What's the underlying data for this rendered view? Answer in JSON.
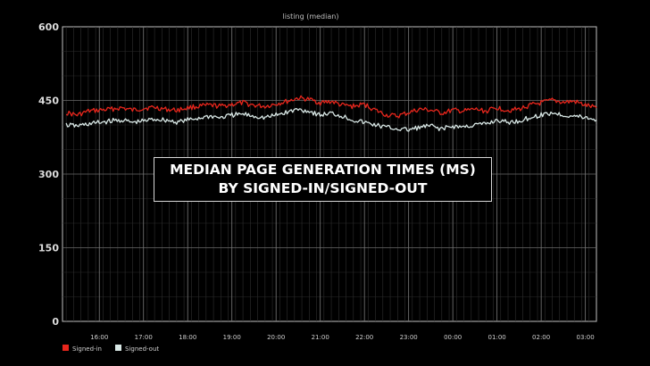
{
  "overlay": {
    "line1": "MEDIAN PAGE GENERATION TIMES (MS)",
    "line2": "BY SIGNED-IN/SIGNED-OUT"
  },
  "chart_data": {
    "type": "line",
    "title": "listing (median)",
    "xlabel": "",
    "ylabel": "",
    "ylim": [
      0,
      600
    ],
    "yticks": [
      "0",
      "150",
      "300",
      "450",
      "600"
    ],
    "xticks": [
      "16:00",
      "17:00",
      "18:00",
      "19:00",
      "20:00",
      "21:00",
      "22:00",
      "23:00",
      "00:00",
      "01:00",
      "02:00",
      "03:00"
    ],
    "grid": true,
    "legend_position": "bottom-left",
    "x": [
      "15:15",
      "15:30",
      "15:45",
      "16:00",
      "16:15",
      "16:30",
      "16:45",
      "17:00",
      "17:15",
      "17:30",
      "17:45",
      "18:00",
      "18:15",
      "18:30",
      "18:45",
      "19:00",
      "19:15",
      "19:30",
      "19:45",
      "20:00",
      "20:15",
      "20:30",
      "20:45",
      "21:00",
      "21:15",
      "21:30",
      "21:45",
      "22:00",
      "22:15",
      "22:30",
      "22:45",
      "23:00",
      "23:15",
      "23:30",
      "23:45",
      "00:00",
      "00:15",
      "00:30",
      "00:45",
      "01:00",
      "01:15",
      "01:30",
      "01:45",
      "02:00",
      "02:15",
      "02:30",
      "02:45",
      "03:00",
      "03:15"
    ],
    "series": [
      {
        "name": "Signed-in",
        "color": "#e8261c",
        "values": [
          425,
          420,
          428,
          430,
          432,
          435,
          430,
          434,
          436,
          432,
          430,
          435,
          438,
          440,
          438,
          442,
          445,
          440,
          438,
          443,
          448,
          455,
          452,
          445,
          448,
          440,
          438,
          442,
          430,
          420,
          418,
          425,
          432,
          430,
          424,
          430,
          428,
          432,
          428,
          435,
          430,
          432,
          440,
          445,
          450,
          446,
          448,
          440,
          435
        ]
      },
      {
        "name": "Signed-out",
        "color": "#d9e8e6",
        "values": [
          400,
          398,
          402,
          405,
          408,
          410,
          405,
          408,
          412,
          410,
          406,
          410,
          414,
          418,
          415,
          420,
          422,
          418,
          415,
          420,
          426,
          432,
          428,
          420,
          424,
          418,
          410,
          405,
          400,
          395,
          392,
          390,
          395,
          398,
          392,
          397,
          396,
          400,
          402,
          410,
          405,
          408,
          415,
          420,
          425,
          420,
          418,
          415,
          410
        ]
      }
    ]
  }
}
